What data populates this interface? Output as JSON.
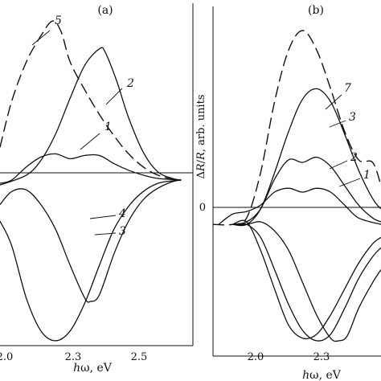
{
  "chart_data": [
    {
      "panel": "(a)",
      "type": "line",
      "xlabel": "hω, eV",
      "ylabel": "",
      "xticks": [
        "2.0",
        "2.3",
        "2.5"
      ],
      "xlim": [
        1.96,
        2.62
      ],
      "ylim": [
        -1.0,
        1.0
      ],
      "zero_line": true,
      "series": [
        {
          "name": "5",
          "dashed": true,
          "x": [
            1.96,
            2.0,
            2.05,
            2.1,
            2.14,
            2.17,
            2.2,
            2.25,
            2.3,
            2.35,
            2.4,
            2.45,
            2.5,
            2.55,
            2.58
          ],
          "y": [
            0.2,
            0.48,
            0.72,
            0.88,
            0.97,
            0.9,
            0.72,
            0.55,
            0.4,
            0.27,
            0.16,
            0.08,
            0.03,
            0.005,
            0
          ]
        },
        {
          "name": "2",
          "x": [
            1.96,
            2.05,
            2.1,
            2.15,
            2.2,
            2.25,
            2.3,
            2.32,
            2.36,
            2.4,
            2.45,
            2.5,
            2.55,
            2.58
          ],
          "y": [
            -0.03,
            0.03,
            0.12,
            0.28,
            0.5,
            0.7,
            0.8,
            0.78,
            0.6,
            0.38,
            0.17,
            0.05,
            0.01,
            0
          ]
        },
        {
          "name": "1",
          "x": [
            1.96,
            2.0,
            2.05,
            2.1,
            2.15,
            2.2,
            2.25,
            2.3,
            2.35,
            2.4,
            2.45,
            2.5,
            2.58
          ],
          "y": [
            -0.02,
            0.0,
            0.08,
            0.14,
            0.16,
            0.13,
            0.15,
            0.15,
            0.1,
            0.06,
            0.03,
            0.01,
            0
          ]
        },
        {
          "name": "4",
          "x": [
            1.96,
            2.0,
            2.05,
            2.1,
            2.15,
            2.2,
            2.25,
            2.27,
            2.3,
            2.35,
            2.4,
            2.45,
            2.5,
            2.55,
            2.58
          ],
          "y": [
            -0.15,
            -0.07,
            -0.06,
            -0.15,
            -0.3,
            -0.52,
            -0.72,
            -0.74,
            -0.7,
            -0.45,
            -0.25,
            -0.12,
            -0.05,
            -0.01,
            0
          ]
        },
        {
          "name": "3",
          "x": [
            1.96,
            2.0,
            2.05,
            2.1,
            2.15,
            2.2,
            2.25,
            2.3,
            2.35,
            2.4,
            2.45,
            2.5,
            2.55,
            2.58
          ],
          "y": [
            -0.25,
            -0.4,
            -0.72,
            -0.92,
            -0.98,
            -0.92,
            -0.75,
            -0.52,
            -0.3,
            -0.16,
            -0.07,
            -0.02,
            -0.005,
            0
          ]
        }
      ]
    },
    {
      "panel": "(b)",
      "type": "line",
      "xlabel": "hω, eV",
      "ylabel": "ΔR/R, arb. units",
      "xticks": [
        "2.0",
        "2.3"
      ],
      "yticks": [
        "0"
      ],
      "xlim": [
        1.88,
        2.48
      ],
      "ylim": [
        -1.0,
        1.55
      ],
      "zero_line": true,
      "series": [
        {
          "name": "7",
          "dashed": true,
          "x": [
            1.88,
            1.95,
            2.0,
            2.05,
            2.1,
            2.15,
            2.2,
            2.25,
            2.3,
            2.35,
            2.4,
            2.45,
            2.48
          ],
          "y": [
            0.0,
            0.0,
            0.05,
            0.4,
            0.95,
            1.35,
            1.5,
            1.35,
            1.05,
            0.72,
            0.5,
            0.48,
            0.3
          ]
        },
        {
          "name": "3",
          "x": [
            1.95,
            2.0,
            2.05,
            2.1,
            2.15,
            2.2,
            2.25,
            2.3,
            2.35,
            2.4,
            2.45,
            2.48
          ],
          "y": [
            0.0,
            0.0,
            0.12,
            0.4,
            0.72,
            0.97,
            1.05,
            0.95,
            0.7,
            0.42,
            0.2,
            0.12
          ]
        },
        {
          "name": "2",
          "x": [
            1.95,
            2.0,
            2.05,
            2.1,
            2.15,
            2.2,
            2.25,
            2.3,
            2.35,
            2.4,
            2.45,
            2.48
          ],
          "y": [
            0.0,
            0.02,
            0.12,
            0.35,
            0.5,
            0.48,
            0.52,
            0.45,
            0.3,
            0.15,
            0.05,
            0.02
          ]
        },
        {
          "name": "1",
          "x": [
            1.9,
            1.95,
            2.0,
            2.05,
            2.1,
            2.15,
            2.2,
            2.25,
            2.3,
            2.35,
            2.4,
            2.48
          ],
          "y": [
            0.0,
            0.08,
            0.1,
            0.15,
            0.25,
            0.28,
            0.25,
            0.28,
            0.25,
            0.15,
            0.05,
            0.0
          ]
        },
        {
          "name": "",
          "x": [
            1.95,
            2.0,
            2.05,
            2.1,
            2.15,
            2.2,
            2.25,
            2.3,
            2.35,
            2.4,
            2.45,
            2.48
          ],
          "y": [
            0.0,
            0.02,
            -0.2,
            -0.5,
            -0.78,
            -0.88,
            -0.85,
            -0.7,
            -0.5,
            -0.3,
            -0.15,
            -0.1
          ]
        },
        {
          "name": "",
          "x": [
            1.95,
            2.0,
            2.05,
            2.1,
            2.15,
            2.2,
            2.25,
            2.3,
            2.35,
            2.4,
            2.45,
            2.48
          ],
          "y": [
            0.0,
            0.0,
            -0.1,
            -0.35,
            -0.62,
            -0.82,
            -0.9,
            -0.85,
            -0.65,
            -0.42,
            -0.25,
            -0.18
          ]
        },
        {
          "name": "",
          "x": [
            1.95,
            2.0,
            2.05,
            2.1,
            2.15,
            2.2,
            2.25,
            2.3,
            2.33,
            2.36,
            2.4,
            2.45,
            2.48
          ],
          "y": [
            0.0,
            0.0,
            0.02,
            -0.05,
            -0.2,
            -0.45,
            -0.7,
            -0.88,
            -0.9,
            -0.86,
            -0.65,
            -0.45,
            -0.35
          ]
        }
      ]
    }
  ]
}
